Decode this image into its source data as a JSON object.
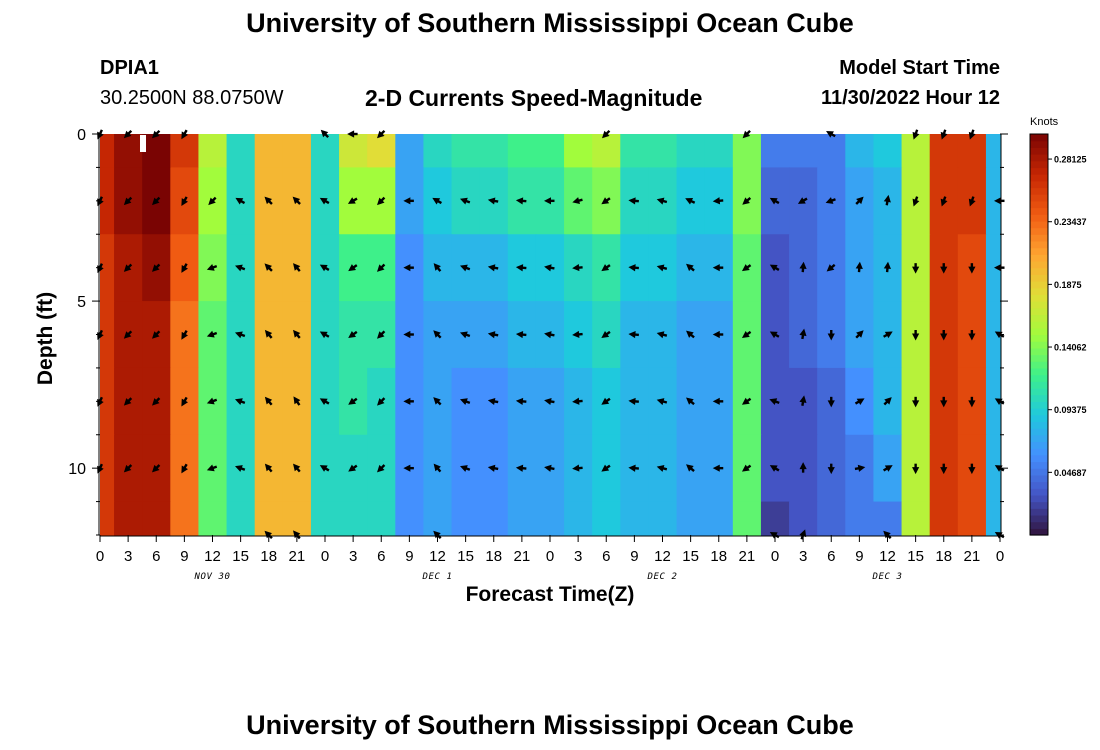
{
  "page": {
    "title": "University of Southern Mississippi Ocean Cube",
    "footer_title": "University of Southern Mississippi Ocean Cube",
    "station_id": "DPIA1",
    "station_coords": "30.2500N  88.0750W",
    "chart_heading": "2-D Currents Speed-Magnitude",
    "model_start_label": "Model Start Time",
    "model_start_value": "11/30/2022 Hour 12"
  },
  "chart_data": {
    "type": "heatmap",
    "title": "2-D Currents Speed-Magnitude",
    "xlabel": "Forecast Time(Z)",
    "ylabel": "Depth (ft)",
    "colorbar_label": "Knots",
    "y_ticks": [
      0,
      5,
      10
    ],
    "ylim": [
      0,
      12
    ],
    "x_tick_labels": [
      "0",
      "3",
      "6",
      "9",
      "12",
      "15",
      "18",
      "21",
      "0",
      "3",
      "6",
      "9",
      "12",
      "15",
      "18",
      "21",
      "0",
      "3",
      "6",
      "9",
      "12",
      "15",
      "18",
      "21",
      "0",
      "3",
      "6",
      "9",
      "12",
      "15",
      "18",
      "21",
      "0"
    ],
    "date_labels": [
      {
        "text": "NOV 30",
        "tick_index": 4
      },
      {
        "text": "DEC 1",
        "tick_index": 12
      },
      {
        "text": "DEC 2",
        "tick_index": 20
      },
      {
        "text": "DEC 3",
        "tick_index": 28
      }
    ],
    "colorbar": {
      "min": 0.0,
      "max": 0.3,
      "ticks": [
        "0.04687",
        "0.09375",
        "0.14062",
        "0.1875",
        "0.23437",
        "0.28125"
      ],
      "tick_values": [
        0.046875,
        0.09375,
        0.140625,
        0.1875,
        0.234375,
        0.28125
      ],
      "colors": [
        "#30123b",
        "#4454c4",
        "#4490fe",
        "#1fc9dd",
        "#3ef08a",
        "#a2fc3c",
        "#e1dd37",
        "#fea431",
        "#f05b12",
        "#c52603",
        "#7a0403"
      ]
    },
    "time_hours": [
      0,
      3,
      6,
      9,
      12,
      15,
      18,
      21,
      24,
      27,
      30,
      33,
      36,
      39,
      42,
      45,
      48,
      51,
      54,
      57,
      60,
      63,
      66,
      69,
      72,
      75,
      78,
      81,
      84,
      87,
      90,
      93,
      96
    ],
    "depth_levels_ft": [
      0,
      2,
      4,
      6,
      8,
      10,
      12
    ],
    "speed_knots": [
      [
        0.27,
        0.29,
        0.3,
        0.26,
        0.16,
        0.1,
        0.2,
        0.2,
        0.1,
        0.17,
        0.18,
        0.07,
        0.1,
        0.11,
        0.11,
        0.12,
        0.12,
        0.15,
        0.16,
        0.11,
        0.11,
        0.1,
        0.1,
        0.14,
        0.05,
        0.05,
        0.05,
        0.08,
        0.09,
        0.16,
        0.26,
        0.26,
        0.08
      ],
      [
        0.27,
        0.29,
        0.3,
        0.25,
        0.15,
        0.1,
        0.2,
        0.2,
        0.1,
        0.15,
        0.15,
        0.07,
        0.09,
        0.1,
        0.1,
        0.11,
        0.11,
        0.13,
        0.14,
        0.1,
        0.1,
        0.09,
        0.09,
        0.14,
        0.04,
        0.04,
        0.05,
        0.07,
        0.08,
        0.16,
        0.26,
        0.26,
        0.08
      ],
      [
        0.26,
        0.28,
        0.29,
        0.24,
        0.14,
        0.1,
        0.2,
        0.2,
        0.1,
        0.12,
        0.12,
        0.06,
        0.08,
        0.08,
        0.08,
        0.09,
        0.09,
        0.1,
        0.11,
        0.09,
        0.09,
        0.08,
        0.08,
        0.13,
        0.03,
        0.04,
        0.05,
        0.07,
        0.08,
        0.16,
        0.26,
        0.25,
        0.08
      ],
      [
        0.26,
        0.28,
        0.28,
        0.23,
        0.13,
        0.1,
        0.2,
        0.2,
        0.1,
        0.11,
        0.11,
        0.06,
        0.07,
        0.07,
        0.07,
        0.08,
        0.08,
        0.09,
        0.1,
        0.08,
        0.08,
        0.07,
        0.07,
        0.13,
        0.03,
        0.04,
        0.05,
        0.07,
        0.08,
        0.16,
        0.26,
        0.25,
        0.08
      ],
      [
        0.26,
        0.28,
        0.28,
        0.23,
        0.13,
        0.1,
        0.2,
        0.2,
        0.1,
        0.11,
        0.1,
        0.06,
        0.07,
        0.06,
        0.06,
        0.07,
        0.07,
        0.08,
        0.09,
        0.08,
        0.08,
        0.07,
        0.07,
        0.13,
        0.03,
        0.03,
        0.04,
        0.06,
        0.08,
        0.16,
        0.26,
        0.25,
        0.08
      ],
      [
        0.26,
        0.28,
        0.28,
        0.23,
        0.13,
        0.1,
        0.2,
        0.2,
        0.1,
        0.1,
        0.1,
        0.06,
        0.07,
        0.06,
        0.06,
        0.07,
        0.07,
        0.08,
        0.09,
        0.08,
        0.08,
        0.07,
        0.07,
        0.13,
        0.03,
        0.03,
        0.04,
        0.05,
        0.07,
        0.16,
        0.26,
        0.25,
        0.08
      ],
      [
        0.26,
        0.28,
        0.28,
        0.23,
        0.13,
        0.1,
        0.2,
        0.2,
        0.1,
        0.1,
        0.1,
        0.06,
        0.07,
        0.06,
        0.06,
        0.07,
        0.07,
        0.08,
        0.09,
        0.08,
        0.08,
        0.07,
        0.07,
        0.13,
        0.02,
        0.03,
        0.04,
        0.05,
        0.05,
        0.16,
        0.26,
        0.25,
        0.08
      ]
    ],
    "direction_deg": [
      [
        205,
        225,
        225,
        210,
        null,
        null,
        null,
        null,
        315,
        270,
        225,
        null,
        null,
        null,
        null,
        null,
        null,
        null,
        225,
        null,
        null,
        null,
        null,
        225,
        null,
        null,
        300,
        null,
        null,
        200,
        200,
        200,
        null
      ],
      [
        205,
        225,
        225,
        210,
        225,
        300,
        315,
        315,
        300,
        240,
        225,
        270,
        300,
        290,
        280,
        275,
        270,
        255,
        235,
        275,
        285,
        295,
        265,
        230,
        300,
        240,
        250,
        45,
        10,
        200,
        200,
        200,
        270
      ],
      [
        205,
        225,
        225,
        210,
        250,
        290,
        315,
        320,
        300,
        235,
        225,
        270,
        320,
        290,
        280,
        275,
        280,
        265,
        235,
        275,
        285,
        310,
        270,
        235,
        300,
        5,
        230,
        5,
        5,
        180,
        180,
        180,
        270
      ],
      [
        205,
        225,
        225,
        210,
        250,
        290,
        320,
        320,
        300,
        235,
        225,
        270,
        315,
        290,
        280,
        275,
        280,
        265,
        235,
        275,
        285,
        310,
        270,
        235,
        300,
        10,
        180,
        45,
        60,
        180,
        180,
        180,
        300
      ],
      [
        205,
        225,
        225,
        210,
        250,
        290,
        320,
        325,
        300,
        235,
        225,
        270,
        315,
        290,
        280,
        275,
        280,
        265,
        235,
        275,
        285,
        310,
        270,
        235,
        290,
        10,
        180,
        60,
        45,
        180,
        180,
        180,
        300
      ],
      [
        205,
        225,
        225,
        210,
        250,
        290,
        320,
        320,
        300,
        235,
        225,
        270,
        320,
        290,
        280,
        275,
        280,
        265,
        235,
        275,
        285,
        310,
        270,
        235,
        300,
        0,
        180,
        80,
        60,
        180,
        180,
        180,
        300
      ],
      [
        null,
        null,
        null,
        null,
        null,
        null,
        315,
        320,
        null,
        null,
        null,
        null,
        315,
        null,
        null,
        null,
        null,
        null,
        null,
        null,
        null,
        null,
        null,
        null,
        300,
        20,
        null,
        null,
        315,
        null,
        null,
        null,
        300
      ]
    ]
  }
}
